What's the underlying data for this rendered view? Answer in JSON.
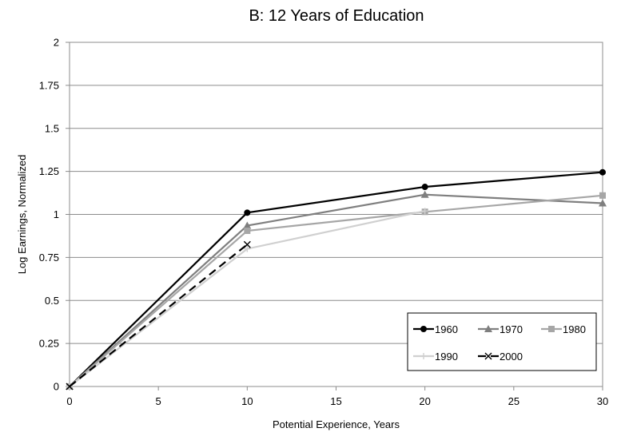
{
  "chart_data": {
    "type": "line",
    "title": "B: 12 Years of Education",
    "xlabel": "Potential Experience, Years",
    "ylabel": "Log Earnings, Normalized",
    "x": [
      0,
      10,
      20,
      30
    ],
    "xlim": [
      0,
      30
    ],
    "ylim": [
      0,
      2
    ],
    "xticks": [
      "0",
      "5",
      "10",
      "15",
      "20",
      "25",
      "30"
    ],
    "yticks": [
      "0",
      "0.25",
      "0.5",
      "0.75",
      "1",
      "1.25",
      "1.5",
      "1.75",
      "2"
    ],
    "grid": "horizontal",
    "legend_position": "bottom-right",
    "series": [
      {
        "name": "1960",
        "values": [
          0,
          1.01,
          1.16,
          1.245
        ],
        "color": "#000000",
        "marker": "circle",
        "dash": "solid"
      },
      {
        "name": "1970",
        "values": [
          0,
          0.935,
          1.115,
          1.065
        ],
        "color": "#7f7f7f",
        "marker": "triangle",
        "dash": "solid"
      },
      {
        "name": "1980",
        "values": [
          0,
          0.905,
          1.015,
          1.11
        ],
        "color": "#a6a6a6",
        "marker": "square",
        "dash": "solid"
      },
      {
        "name": "1990",
        "values": [
          0,
          0.8,
          1.02,
          null
        ],
        "color": "#d0d0d0",
        "marker": "plus",
        "dash": "solid"
      },
      {
        "name": "2000",
        "values": [
          0,
          0.825,
          null,
          null
        ],
        "color": "#000000",
        "marker": "x",
        "dash": "dashed"
      }
    ]
  }
}
